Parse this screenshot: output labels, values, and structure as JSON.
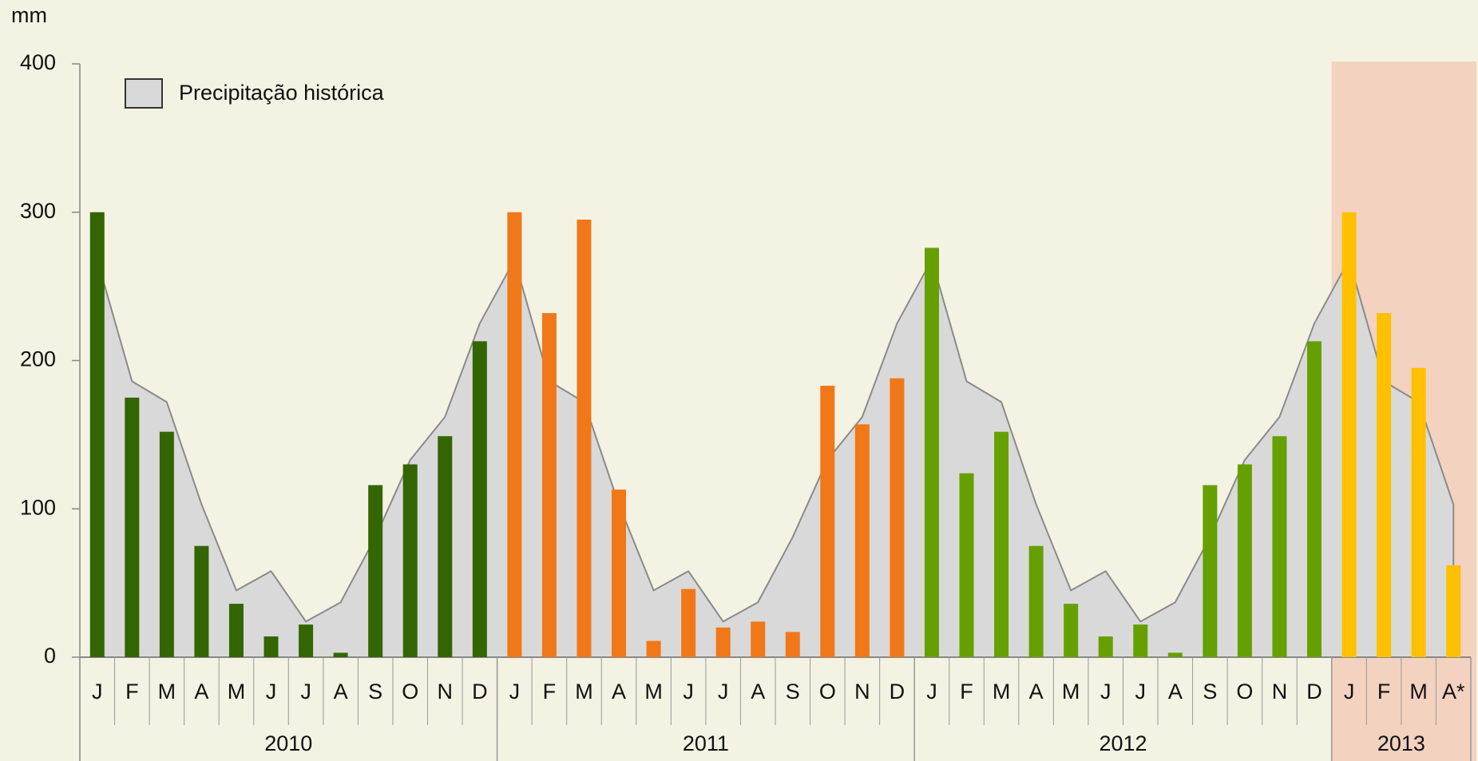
{
  "chart_data": {
    "type": "bar",
    "y_label": "mm",
    "categories": [
      "J",
      "F",
      "M",
      "A",
      "M",
      "J",
      "J",
      "A",
      "S",
      "O",
      "N",
      "D",
      "J",
      "F",
      "M",
      "A",
      "M",
      "J",
      "J",
      "A",
      "S",
      "O",
      "N",
      "D",
      "J",
      "F",
      "M",
      "A",
      "M",
      "J",
      "J",
      "A",
      "S",
      "O",
      "N",
      "D",
      "J",
      "F",
      "M",
      "A*"
    ],
    "ylim": [
      0,
      400
    ],
    "yticks": [
      0,
      100,
      200,
      300,
      400
    ],
    "legend_position": "upper left",
    "area": {
      "name": "Precipitação histórica",
      "color": "#d9d9d9",
      "values": [
        268,
        186,
        172,
        103,
        45,
        58,
        24,
        37,
        81,
        133,
        162,
        225,
        268,
        186,
        172,
        103,
        45,
        58,
        24,
        37,
        81,
        133,
        162,
        225,
        268,
        186,
        172,
        103,
        45,
        58,
        24,
        37,
        81,
        133,
        162,
        225,
        268,
        186,
        172,
        103
      ]
    },
    "series": [
      {
        "name": "2010",
        "color": "#336600",
        "values": [
          300,
          175,
          152,
          75,
          36,
          14,
          22,
          3,
          116,
          130,
          149,
          213,
          null,
          null,
          null,
          null,
          null,
          null,
          null,
          null,
          null,
          null,
          null,
          null,
          null,
          null,
          null,
          null,
          null,
          null,
          null,
          null,
          null,
          null,
          null,
          null,
          null,
          null,
          null,
          null
        ]
      },
      {
        "name": "2011",
        "color": "#f07818",
        "values": [
          null,
          null,
          null,
          null,
          null,
          null,
          null,
          null,
          null,
          null,
          null,
          null,
          300,
          232,
          295,
          113,
          11,
          46,
          20,
          24,
          17,
          183,
          157,
          188,
          null,
          null,
          null,
          null,
          null,
          null,
          null,
          null,
          null,
          null,
          null,
          null,
          null,
          null,
          null,
          null
        ]
      },
      {
        "name": "2012",
        "color": "#66a000",
        "values": [
          null,
          null,
          null,
          null,
          null,
          null,
          null,
          null,
          null,
          null,
          null,
          null,
          null,
          null,
          null,
          null,
          null,
          null,
          null,
          null,
          null,
          null,
          null,
          null,
          276,
          124,
          152,
          75,
          36,
          14,
          22,
          3,
          116,
          130,
          149,
          213,
          null,
          null,
          null,
          null
        ]
      },
      {
        "name": "2013",
        "color": "#ffc000",
        "values": [
          null,
          null,
          null,
          null,
          null,
          null,
          null,
          null,
          null,
          null,
          null,
          null,
          null,
          null,
          null,
          null,
          null,
          null,
          null,
          null,
          null,
          null,
          null,
          null,
          null,
          null,
          null,
          null,
          null,
          null,
          null,
          null,
          null,
          null,
          null,
          null,
          300,
          232,
          195,
          62
        ]
      }
    ]
  }
}
